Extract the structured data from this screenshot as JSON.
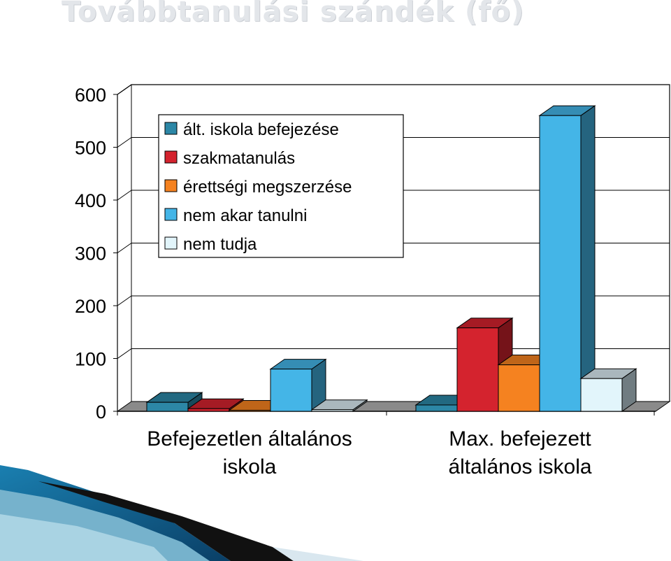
{
  "slide": {
    "title": "Továbbtanulási szándék (fő)"
  },
  "chart_data": {
    "type": "bar",
    "title": "",
    "xlabel": "",
    "ylabel": "",
    "ylim": [
      0,
      600
    ],
    "yticks": [
      "0",
      "100",
      "200",
      "300",
      "400",
      "500",
      "600"
    ],
    "grid": true,
    "legend_position": "top-left",
    "categories": [
      "Befejezetlen általános iskola",
      "Max. befejezett általános iskola"
    ],
    "series": [
      {
        "name": "ált. iskola befejezése",
        "values": [
          17,
          12
        ],
        "color": "#2c87a6"
      },
      {
        "name": "szakmatanulás",
        "values": [
          5,
          158
        ],
        "color": "#d4232e"
      },
      {
        "name": "érettségi megszerzése",
        "values": [
          2,
          88
        ],
        "color": "#f58220"
      },
      {
        "name": "nem akar tanulni",
        "values": [
          80,
          560
        ],
        "color": "#44b5e7"
      },
      {
        "name": "nem tudja",
        "values": [
          3,
          62
        ],
        "color": "#e2f5fb"
      }
    ],
    "category_label_lines": [
      [
        "Befejezetlen általános",
        "iskola"
      ],
      [
        "Max. befejezett",
        "általános iskola"
      ]
    ]
  }
}
